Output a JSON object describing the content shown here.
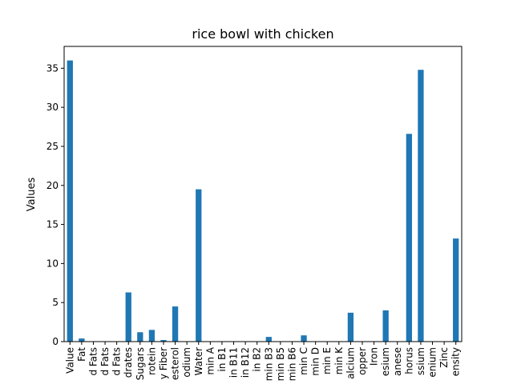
{
  "chart_data": {
    "type": "bar",
    "title": "rice bowl with chicken",
    "xlabel": "",
    "ylabel": "Values",
    "ylim": [
      0,
      37.8
    ],
    "yticks": [
      0,
      5,
      10,
      15,
      20,
      25,
      30,
      35
    ],
    "grid": false,
    "legend": "none",
    "bar_color": "#1f77b4",
    "categories": [
      "Value",
      "Fat",
      "d Fats",
      "d Fats",
      "d Fats",
      "drates",
      "Sugars",
      "rotein",
      "y Fiber",
      "esterol",
      "odium",
      "Water",
      "min A",
      "in B1",
      "in B11",
      "in B12",
      "in B2",
      "min B3",
      "min B5",
      "min B6",
      "min C",
      "min D",
      "min E",
      "min K",
      "alcium",
      "opper",
      "Iron",
      "esium",
      "anese",
      "horus",
      "ssium",
      "enium",
      "Zinc",
      "ensity"
    ],
    "values": [
      36.0,
      0.4,
      0.0,
      0.05,
      0.05,
      6.3,
      1.2,
      1.5,
      0.2,
      4.5,
      0.0,
      19.5,
      0.0,
      0.0,
      0.05,
      0.0,
      0.0,
      0.6,
      0.05,
      0.05,
      0.8,
      0.0,
      0.05,
      0.0,
      3.7,
      0.0,
      0.0,
      4.0,
      0.05,
      26.6,
      34.8,
      0.0,
      0.05,
      13.2
    ]
  }
}
